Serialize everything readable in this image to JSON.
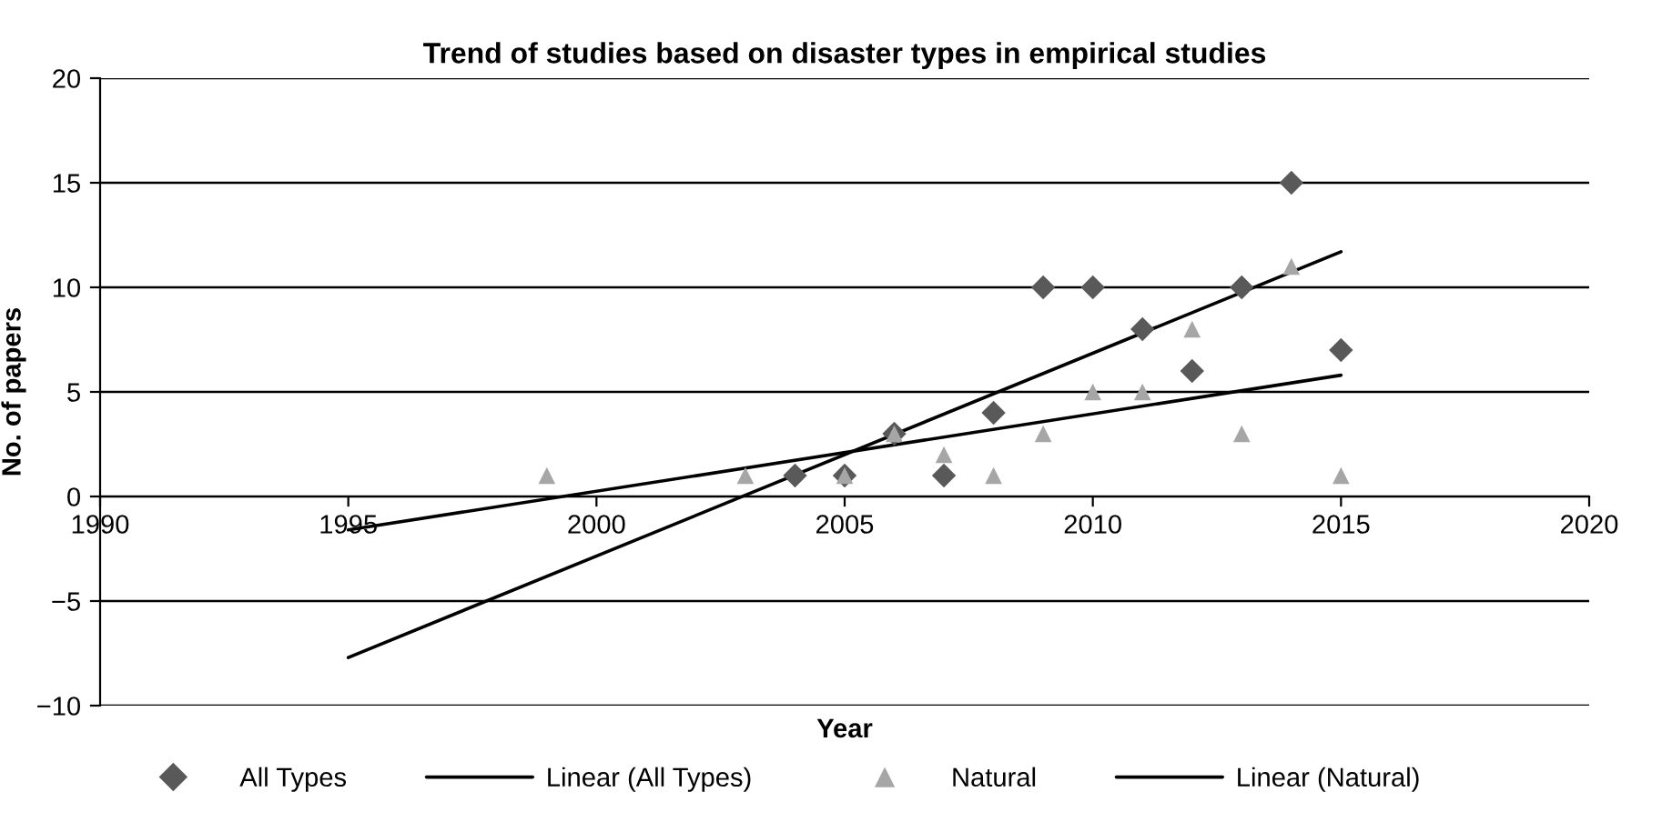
{
  "chart_data": {
    "type": "scatter",
    "title": "Trend of studies based on disaster types in empirical studies",
    "xlabel": "Year",
    "ylabel": "No. of papers",
    "series": [
      {
        "name": "All Types",
        "color": "#595959",
        "marker": "diamond",
        "x": [
          2004,
          2005,
          2006,
          2007,
          2008,
          2009,
          2010,
          2011,
          2012,
          2013,
          2014,
          2015
        ],
        "values": [
          1,
          1,
          3,
          1,
          4,
          10,
          10,
          8,
          6,
          10,
          15,
          7
        ]
      },
      {
        "name": "Linear (All Types)",
        "type": "line",
        "color": "#000000",
        "marker": "none",
        "x": [
          1995,
          2015
        ],
        "values": [
          -7.7,
          11.7
        ]
      },
      {
        "name": "Natural",
        "color": "#a6a6a6",
        "marker": "triangle",
        "x": [
          1999,
          2003,
          2005,
          2006,
          2007,
          2008,
          2009,
          2010,
          2011,
          2012,
          2013,
          2014,
          2015
        ],
        "values": [
          1,
          1,
          1,
          3,
          2,
          1,
          3,
          5,
          5,
          8,
          3,
          11,
          1
        ]
      },
      {
        "name": "Linear (Natural)",
        "type": "line",
        "color": "#000000",
        "marker": "none",
        "x": [
          1995,
          2015
        ],
        "values": [
          -1.6,
          5.8
        ]
      }
    ],
    "xlim": [
      1990,
      2020
    ],
    "xticks": [
      1990,
      1995,
      2000,
      2005,
      2010,
      2015,
      2020
    ],
    "ylim": [
      -10,
      20
    ],
    "yticks": [
      -10,
      -5,
      0,
      5,
      10,
      15,
      20
    ],
    "grid": "y",
    "legend": "bottom"
  }
}
